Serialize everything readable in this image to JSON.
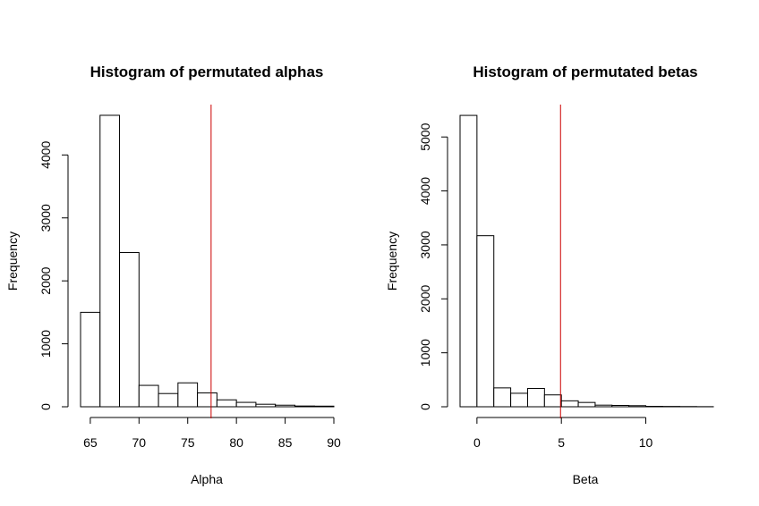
{
  "chart_data": [
    {
      "type": "bar",
      "title": "Histogram of permutated alphas",
      "xlabel": "Alpha",
      "ylabel": "Frequency",
      "bin_edges": [
        64,
        66,
        68,
        70,
        72,
        74,
        76,
        78,
        80,
        82,
        84,
        86,
        88,
        90
      ],
      "values": [
        1500,
        4630,
        2450,
        340,
        210,
        380,
        220,
        110,
        70,
        40,
        25,
        12,
        10
      ],
      "xticks": [
        65,
        70,
        75,
        80,
        85,
        90
      ],
      "yticks": [
        0,
        1000,
        2000,
        3000,
        4000
      ],
      "xlim": [
        64,
        90
      ],
      "ylim": [
        0,
        4800
      ],
      "vline": 77.4,
      "vline_color": "#cc0000"
    },
    {
      "type": "bar",
      "title": "Histogram of permutated betas",
      "xlabel": "Beta",
      "ylabel": "Frequency",
      "bin_edges": [
        -1,
        0,
        1,
        2,
        3,
        4,
        5,
        6,
        7,
        8,
        9,
        10,
        11,
        12,
        13,
        14
      ],
      "values": [
        5400,
        3170,
        350,
        250,
        340,
        220,
        110,
        80,
        30,
        25,
        20,
        8,
        6,
        4,
        2
      ],
      "xticks": [
        0,
        5,
        10
      ],
      "yticks": [
        0,
        1000,
        2000,
        3000,
        4000,
        5000
      ],
      "xlim": [
        -1,
        14
      ],
      "ylim": [
        0,
        5600
      ],
      "vline": 4.95,
      "vline_color": "#cc0000"
    }
  ]
}
